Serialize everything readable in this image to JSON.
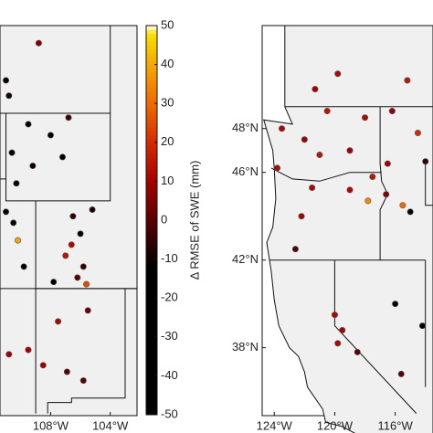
{
  "maps": [
    {
      "xlim": [
        -111.4,
        -102.2
      ],
      "ylim": [
        31.2,
        49
      ],
      "xticks": [
        {
          "value": -108,
          "label": "108°W"
        },
        {
          "value": -104,
          "label": "104°W"
        }
      ],
      "stations": [
        {
          "lon": -110.8,
          "lat": 45.8,
          "value": -8
        },
        {
          "lon": -109.5,
          "lat": 44.5,
          "value": -12
        },
        {
          "lon": -110.6,
          "lat": 43.2,
          "value": -30
        },
        {
          "lon": -111,
          "lat": 40.5,
          "value": -45
        },
        {
          "lon": -110.5,
          "lat": 40,
          "value": -40
        },
        {
          "lon": -106.5,
          "lat": 40.3,
          "value": -6
        },
        {
          "lon": -106,
          "lat": 39.5,
          "value": -10
        },
        {
          "lon": -107,
          "lat": 38.5,
          "value": 15
        },
        {
          "lon": -105.8,
          "lat": 38,
          "value": -5
        },
        {
          "lon": -106.2,
          "lat": 37.5,
          "value": 0
        },
        {
          "lon": -107.5,
          "lat": 35.5,
          "value": 12
        },
        {
          "lon": -108.5,
          "lat": 33.5,
          "value": 10
        },
        {
          "lon": -105.5,
          "lat": 36,
          "value": 2
        },
        {
          "lon": -110.2,
          "lat": 39.2,
          "value": 40
        },
        {
          "lon": -109.8,
          "lat": 38,
          "value": -20
        },
        {
          "lon": -108,
          "lat": 44,
          "value": -25
        },
        {
          "lon": -107.2,
          "lat": 43,
          "value": -15
        },
        {
          "lon": -106.8,
          "lat": 44.8,
          "value": -3
        },
        {
          "lon": -105.2,
          "lat": 40.6,
          "value": -8
        },
        {
          "lon": -107.8,
          "lat": 37.3,
          "value": -50
        },
        {
          "lon": -110.8,
          "lat": 34,
          "value": 10
        },
        {
          "lon": -105.8,
          "lat": 32.8,
          "value": 0
        },
        {
          "lon": -108.8,
          "lat": 48.2,
          "value": 5
        },
        {
          "lon": -111,
          "lat": 46.5,
          "value": -18
        },
        {
          "lon": -109.2,
          "lat": 42.6,
          "value": -10
        },
        {
          "lon": -106.6,
          "lat": 39,
          "value": 12
        },
        {
          "lon": -105.6,
          "lat": 37.2,
          "value": 25
        },
        {
          "lon": -109.5,
          "lat": 34.2,
          "value": 10
        },
        {
          "lon": -106.9,
          "lat": 33.2,
          "value": 0
        },
        {
          "lon": -110.3,
          "lat": 41.8,
          "value": -35
        }
      ]
    },
    {
      "xlim": [
        -124.8,
        -113.5
      ],
      "ylim": [
        34.9,
        52.7
      ],
      "xticks": [
        {
          "value": -124,
          "label": "124°W"
        },
        {
          "value": -120,
          "label": "120°W"
        },
        {
          "value": -116,
          "label": "116°W"
        }
      ],
      "yticks": [
        {
          "value": 48,
          "label": "48°N"
        },
        {
          "value": 46,
          "label": "46°N"
        },
        {
          "value": 42,
          "label": "42°N"
        },
        {
          "value": 38,
          "label": "38°N"
        }
      ],
      "stations": [
        {
          "lon": -123.5,
          "lat": 48,
          "value": 12
        },
        {
          "lon": -122,
          "lat": 47.5,
          "value": 10
        },
        {
          "lon": -121,
          "lat": 46.8,
          "value": 15
        },
        {
          "lon": -121.5,
          "lat": 45.3,
          "value": 12
        },
        {
          "lon": -122.2,
          "lat": 44,
          "value": 10
        },
        {
          "lon": -119,
          "lat": 45.2,
          "value": 12
        },
        {
          "lon": -117.5,
          "lat": 45.8,
          "value": 15
        },
        {
          "lon": -116.5,
          "lat": 46.4,
          "value": 10
        },
        {
          "lon": -115.5,
          "lat": 44.5,
          "value": 30
        },
        {
          "lon": -115,
          "lat": 44.2,
          "value": -40
        },
        {
          "lon": -120,
          "lat": 39.5,
          "value": 12
        },
        {
          "lon": -119.5,
          "lat": 38.8,
          "value": 10
        },
        {
          "lon": -118.5,
          "lat": 37.8,
          "value": 0
        },
        {
          "lon": -116,
          "lat": 40,
          "value": -25
        },
        {
          "lon": -114.2,
          "lat": 39,
          "value": -30
        },
        {
          "lon": -119,
          "lat": 47,
          "value": 10
        },
        {
          "lon": -118,
          "lat": 48.5,
          "value": 12
        },
        {
          "lon": -120.5,
          "lat": 48.8,
          "value": 15
        },
        {
          "lon": -116.2,
          "lat": 48.8,
          "value": 8
        },
        {
          "lon": -114.5,
          "lat": 47.8,
          "value": 20
        },
        {
          "lon": -114,
          "lat": 46.5,
          "value": -5
        },
        {
          "lon": -122.6,
          "lat": 42.5,
          "value": 0
        },
        {
          "lon": -123.8,
          "lat": 46.2,
          "value": 12
        },
        {
          "lon": -117.8,
          "lat": 44.7,
          "value": 35
        },
        {
          "lon": -121.3,
          "lat": 49.8,
          "value": 10
        },
        {
          "lon": -119.8,
          "lat": 50.5,
          "value": 12
        },
        {
          "lon": -115.2,
          "lat": 50.2,
          "value": 15
        },
        {
          "lon": -116.6,
          "lat": 45,
          "value": 5
        },
        {
          "lon": -119.8,
          "lat": 38.2,
          "value": 12
        },
        {
          "lon": -115.6,
          "lat": 36.8,
          "value": 0
        }
      ]
    }
  ],
  "colorbar": {
    "clim": [
      -50,
      50
    ],
    "label": "Δ RMSE of SWE (mm)",
    "ticks": [
      50,
      40,
      30,
      20,
      10,
      0,
      -10,
      -20,
      -30,
      -40,
      -50
    ]
  }
}
